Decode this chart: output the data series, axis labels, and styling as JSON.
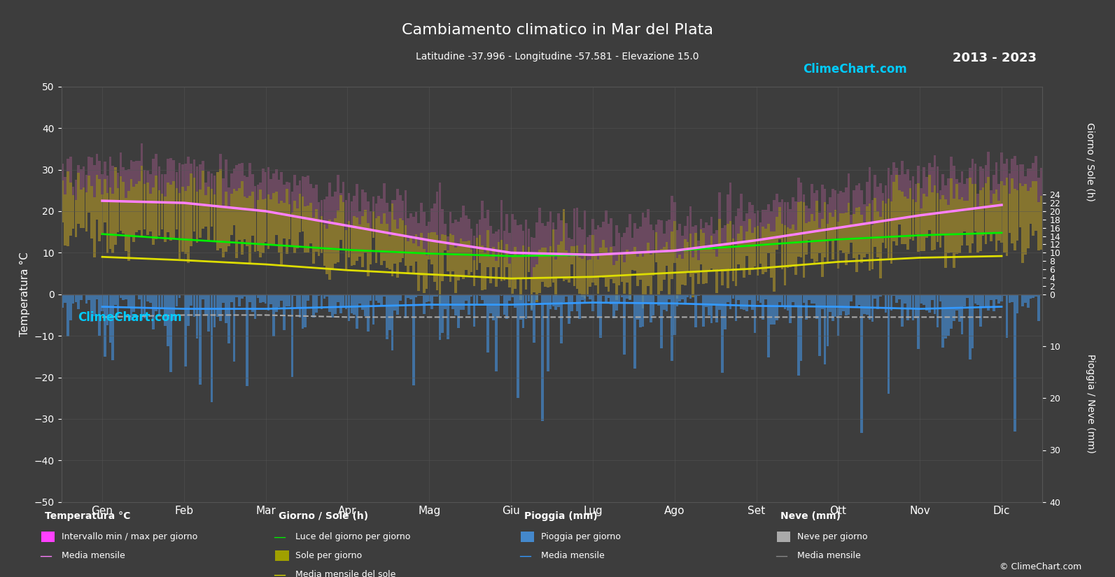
{
  "title": "Cambiamento climatico in Mar del Plata",
  "subtitle": "Latitudine -37.996 - Longitudine -57.581 - Elevazione 15.0",
  "year_range": "2013 - 2023",
  "background_color": "#3d3d3d",
  "months": [
    "Gen",
    "Feb",
    "Mar",
    "Apr",
    "Mag",
    "Giu",
    "Lug",
    "Ago",
    "Set",
    "Ott",
    "Nov",
    "Dic"
  ],
  "temp_ylim": [
    -50,
    50
  ],
  "sun_ylim": [
    0,
    24
  ],
  "rain_ylim": [
    0,
    40
  ],
  "temp_mean": [
    22.5,
    22.0,
    20.0,
    16.5,
    13.0,
    10.0,
    9.5,
    10.5,
    13.0,
    16.0,
    19.0,
    21.5
  ],
  "temp_max_mean": [
    27.5,
    27.0,
    25.0,
    21.0,
    17.0,
    13.5,
    13.0,
    14.0,
    17.0,
    21.0,
    24.0,
    26.5
  ],
  "temp_min_mean": [
    17.5,
    17.0,
    15.0,
    12.0,
    9.0,
    6.5,
    6.0,
    7.0,
    9.5,
    12.0,
    14.5,
    17.0
  ],
  "temp_max_daily": [
    31.0,
    31.0,
    29.0,
    25.0,
    20.0,
    17.0,
    16.5,
    17.5,
    20.5,
    25.0,
    28.5,
    30.5
  ],
  "temp_min_daily": [
    14.0,
    13.5,
    11.5,
    8.0,
    5.0,
    2.5,
    2.0,
    3.0,
    6.0,
    9.0,
    11.5,
    13.0
  ],
  "daylight": [
    14.5,
    13.2,
    12.0,
    10.7,
    9.8,
    9.2,
    9.5,
    10.5,
    11.8,
    13.2,
    14.2,
    14.8
  ],
  "sunshine_hours": [
    9.5,
    8.5,
    7.5,
    6.0,
    5.0,
    4.0,
    4.5,
    5.5,
    6.5,
    8.0,
    9.0,
    9.5
  ],
  "sunshine_mean": [
    9.0,
    8.2,
    7.2,
    5.8,
    4.8,
    3.8,
    4.2,
    5.2,
    6.2,
    7.8,
    8.8,
    9.2
  ],
  "rain_daily_mean": [
    2.5,
    2.8,
    3.0,
    2.5,
    2.2,
    2.0,
    1.8,
    2.0,
    2.5,
    2.8,
    3.0,
    2.5
  ],
  "rain_mean": [
    -3.0,
    -3.5,
    -3.5,
    -3.0,
    -2.5,
    -2.5,
    -2.0,
    -2.2,
    -2.8,
    -3.0,
    -3.5,
    -3.0
  ],
  "snow_mean": [
    -5.5,
    -5.0,
    -5.0,
    -5.5,
    -5.5,
    -5.5,
    -5.5,
    -5.5,
    -5.5,
    -5.5,
    -5.5,
    -5.5
  ],
  "grid_color": "#555555",
  "temp_band_color_top": "#c8a000",
  "temp_band_color_bottom": "#b06080",
  "magenta_line_color": "#ff40ff",
  "green_line_color": "#00ff00",
  "yellow_line_color": "#ffff00",
  "blue_bar_color": "#4488cc",
  "rain_mean_color": "#3399ff",
  "snow_mean_color": "#aaaaaa",
  "text_color": "#ffffff"
}
